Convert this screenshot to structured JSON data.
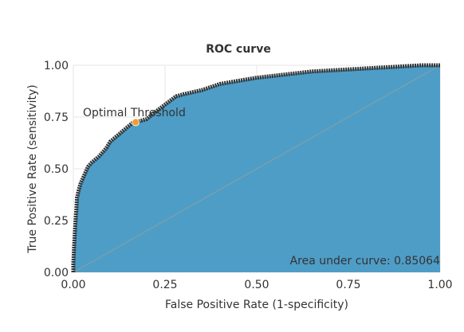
{
  "chart_data": {
    "type": "area",
    "title": "ROC curve",
    "xlabel": "False Positive Rate (1-specificity)",
    "ylabel": "True Positive Rate (sensitivity)",
    "xlim": [
      0,
      1
    ],
    "ylim": [
      0,
      1
    ],
    "x_ticks": [
      "0.00",
      "0.25",
      "0.50",
      "0.75",
      "1.00"
    ],
    "y_ticks": [
      "0.00",
      "0.25",
      "0.50",
      "0.75",
      "1.00"
    ],
    "grid": true,
    "series": [
      {
        "x": [
          0.0,
          0.0,
          0.002,
          0.005,
          0.008,
          0.01,
          0.015,
          0.02,
          0.03,
          0.04,
          0.05,
          0.07,
          0.09,
          0.1,
          0.12,
          0.14,
          0.16,
          0.17,
          0.2,
          0.22,
          0.25,
          0.28,
          0.3,
          0.35,
          0.4,
          0.45,
          0.5,
          0.55,
          0.6,
          0.65,
          0.7,
          0.75,
          0.8,
          0.85,
          0.9,
          0.95,
          1.0
        ],
        "y": [
          0.0,
          0.04,
          0.12,
          0.22,
          0.3,
          0.36,
          0.4,
          0.43,
          0.47,
          0.51,
          0.53,
          0.56,
          0.6,
          0.63,
          0.66,
          0.69,
          0.72,
          0.725,
          0.74,
          0.77,
          0.81,
          0.85,
          0.86,
          0.88,
          0.91,
          0.925,
          0.94,
          0.95,
          0.96,
          0.97,
          0.975,
          0.98,
          0.985,
          0.99,
          0.995,
          1.0,
          1.0
        ]
      }
    ],
    "colors": {
      "fill": "#4e9dc7",
      "curve": "#333333",
      "diagonal": "#8aa0a0",
      "optimal": "#f0a030",
      "grid": "#e5e5e5"
    },
    "optimal_point": {
      "label": "Optimal Threshold",
      "x": 0.17,
      "y": 0.725
    },
    "auc_label": "Area under curve: 0.85064"
  }
}
